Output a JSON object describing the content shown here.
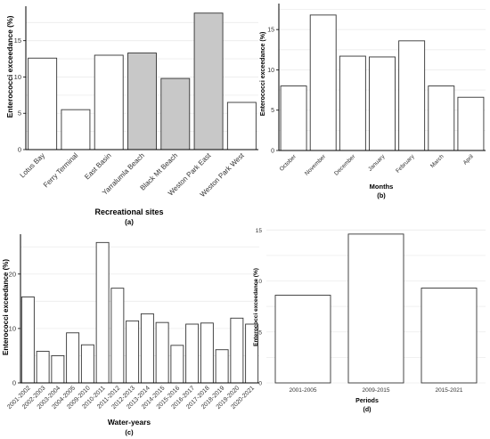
{
  "colors": {
    "bar_fill": "#ffffff",
    "highlight_fill": "#c8c8c8",
    "bar_stroke": "#333333",
    "axis": "#000000",
    "grid": "#ececec"
  },
  "chart_data": [
    {
      "type": "bar",
      "panel": "(a)",
      "xlabel": "Recreational sites",
      "ylabel": "Enterococci exceedance (%)",
      "categories": [
        "Lotus Bay",
        "Ferry Terminal",
        "East Basin",
        "Yarralumla Beach",
        "Black Mt Beach",
        "Weston Park East",
        "Weston Park West"
      ],
      "values": [
        12.6,
        5.5,
        13.0,
        13.3,
        9.8,
        18.8,
        6.5
      ],
      "highlight": [
        false,
        false,
        false,
        true,
        true,
        true,
        false
      ],
      "yticks": [
        0,
        5,
        10,
        15
      ],
      "ylim": [
        0,
        19.5
      ],
      "grid": true
    },
    {
      "type": "bar",
      "panel": "(b)",
      "xlabel": "Months",
      "ylabel": "Enterococci exceedance (%)",
      "categories": [
        "October",
        "November",
        "December",
        "January",
        "February",
        "March",
        "April"
      ],
      "values": [
        8.0,
        16.8,
        11.7,
        11.6,
        13.6,
        8.0,
        6.6
      ],
      "yticks": [
        0,
        5,
        10,
        15
      ],
      "ylim": [
        0,
        18
      ],
      "grid": true
    },
    {
      "type": "bar",
      "panel": "(c)",
      "xlabel": "Water-years",
      "ylabel": "Enterococci exceedance (%)",
      "categories": [
        "2001-2002",
        "2002-2003",
        "2003-2004",
        "2004-2005",
        "2009-2010",
        "2010-2011",
        "2011-2012",
        "2012-2013",
        "2013-2014",
        "2014-2015",
        "2015-2016",
        "2016-2017",
        "2017-2018",
        "2018-2019",
        "2019-2020",
        "2020-2021"
      ],
      "values": [
        15.8,
        5.8,
        5.0,
        9.2,
        7.0,
        25.8,
        17.4,
        11.4,
        12.7,
        11.1,
        6.9,
        10.8,
        11.0,
        6.1,
        11.9,
        10.8
      ],
      "yticks": [
        0,
        10,
        20
      ],
      "ylim": [
        0,
        27
      ],
      "grid": true
    },
    {
      "type": "bar",
      "panel": "(d)",
      "xlabel": "Periods",
      "ylabel": "Enterococci exceedance (%)",
      "categories": [
        "2001-2005",
        "2009-2015",
        "2015-2021"
      ],
      "values": [
        8.6,
        14.6,
        9.3
      ],
      "yticks": [
        0,
        5,
        10,
        15
      ],
      "ylim": [
        0,
        15.2
      ],
      "grid": true
    }
  ]
}
